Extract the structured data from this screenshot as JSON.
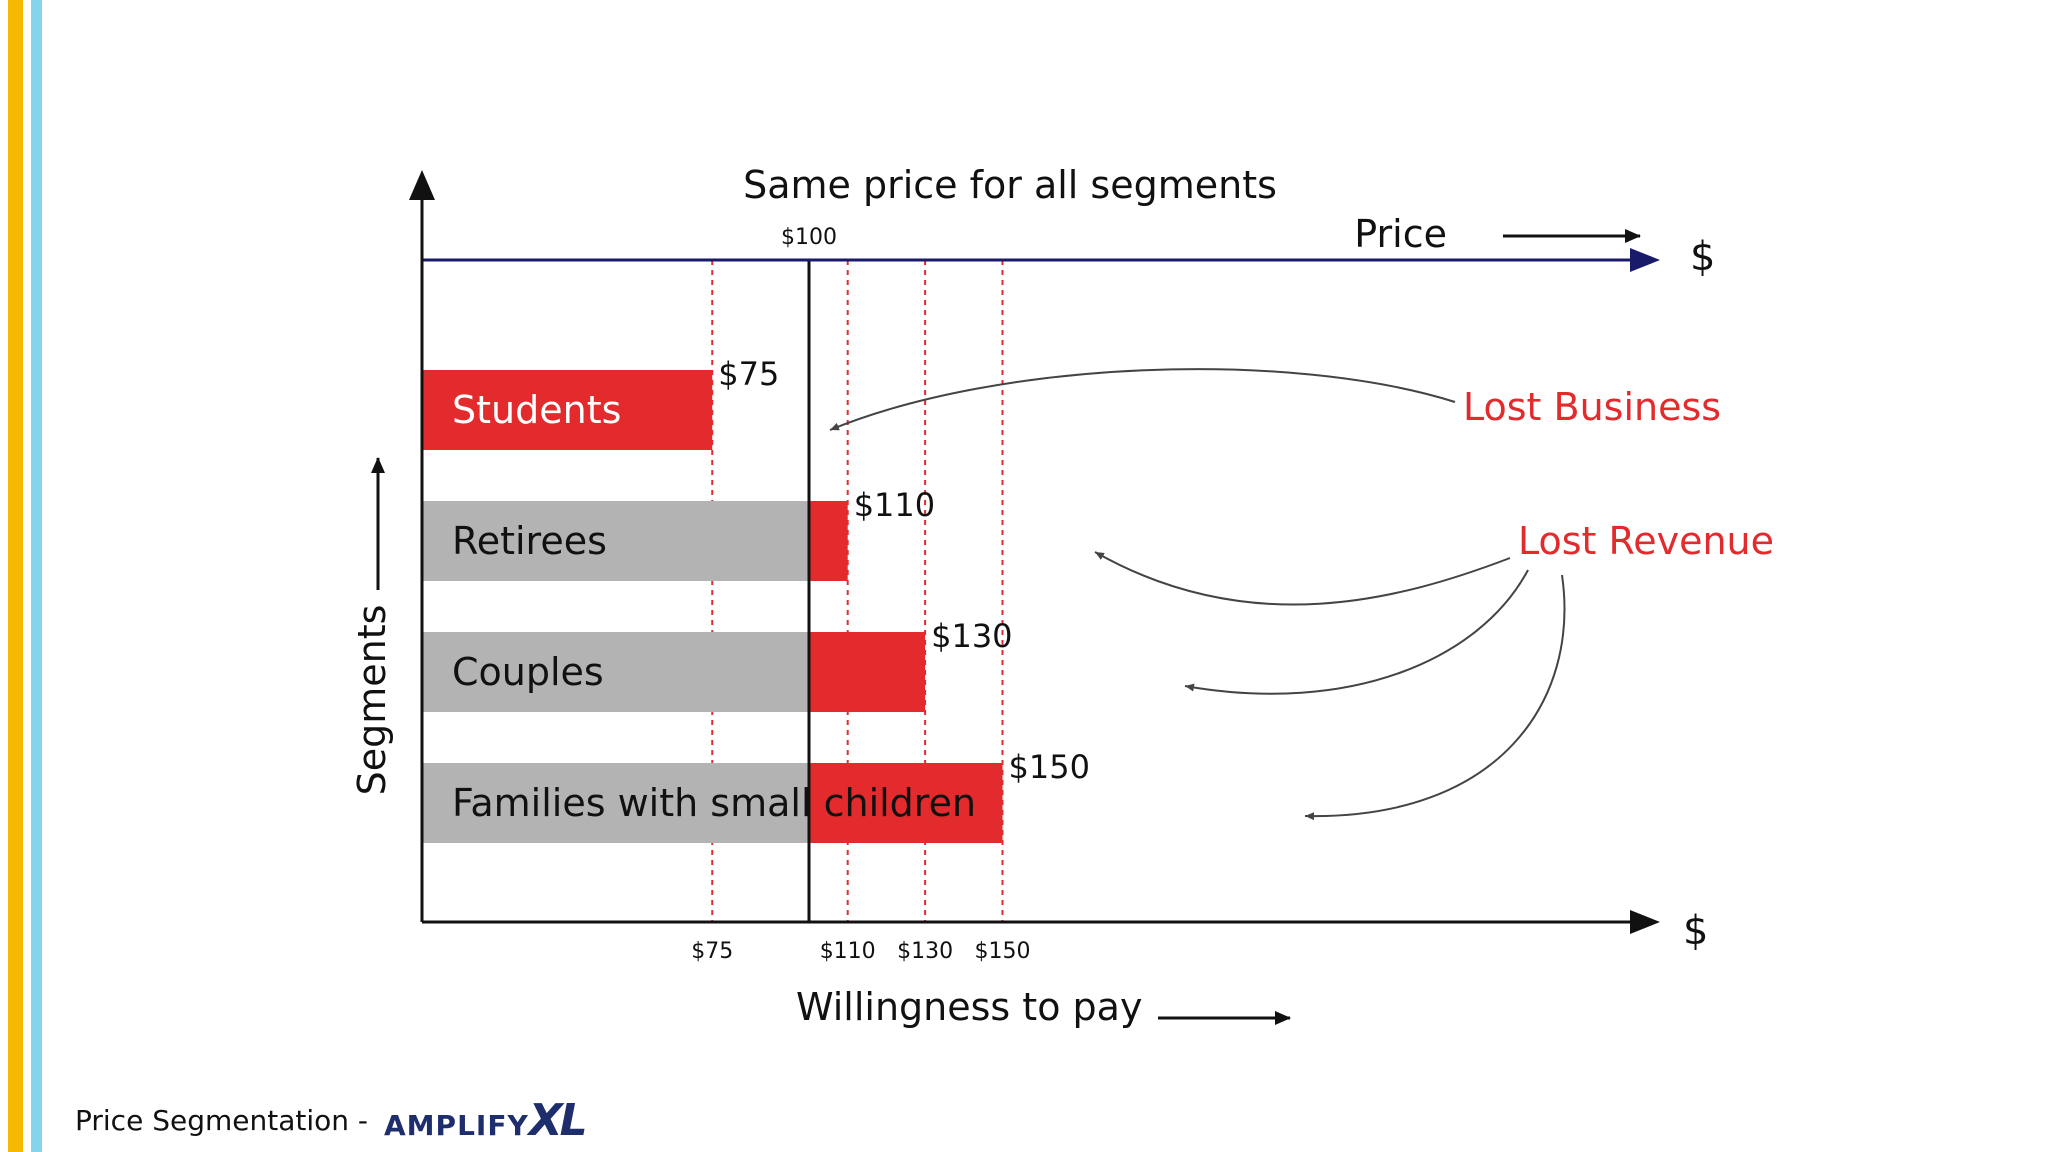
{
  "colors": {
    "accent_stripe": "#f6b800",
    "secondary_stripe": "#86d3ec",
    "red": "#e32a2c",
    "gray": "#b3b3b3",
    "price_axis": "#1a1a6b",
    "logo": "#1e2d6b"
  },
  "chart_data": {
    "type": "bar",
    "title": "Same price for all segments",
    "xlabel": "Willingness to pay",
    "ylabel": "Segments",
    "price_axis_label": "Price",
    "axis_unit_symbol": "$",
    "price": 100,
    "price_label": "$100",
    "xlim": [
      0,
      185
    ],
    "categories": [
      "Students",
      "Retirees",
      "Couples",
      "Families with small children"
    ],
    "values": [
      75,
      110,
      130,
      150
    ],
    "value_labels": [
      "$75",
      "$110",
      "$130",
      "$150"
    ],
    "tick_values": [
      75,
      110,
      130,
      150
    ],
    "tick_labels": [
      "$75",
      "$110",
      "$130",
      "$150"
    ],
    "annotations": {
      "lost_business": "Lost Business",
      "lost_revenue": "Lost Revenue"
    },
    "grid": false
  },
  "footer": {
    "text": "Price Segmentation -",
    "logo_main": "AMPLIFY",
    "logo_accent": "XL"
  }
}
